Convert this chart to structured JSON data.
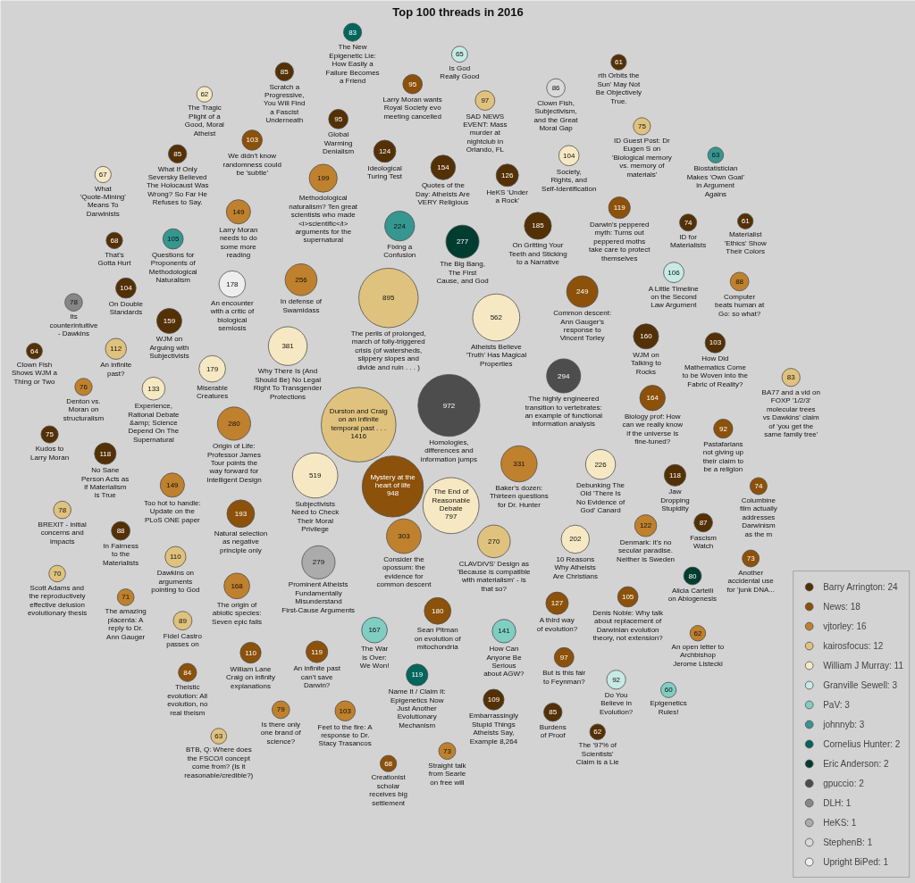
{
  "chart_data": {
    "type": "other",
    "title": "Top 100 threads in 2016",
    "legend": "bottom right",
    "data_labels": true,
    "categories": [
      "Durston and Craig on an infinite temporal past . . .",
      "Homologies, differences and information jumps",
      "Mystery at the heart of life",
      "The perils of prolonged, march of folly-triggered crisis (of watersheds, slippery slopes and divide and ruin . . . )",
      "The End of Reasonable Debate",
      "Atheists Believe 'Truth' Has Magical Properties",
      "Subjectivists Need to Check Their Moral Privilege",
      "Why There Is (And Should Be) No Legal Right To Transgender Protections",
      "Baker's dozen: Thirteen questions for Dr. Hunter",
      "Consider the opossum: the evidence for common descent",
      "The highly engineered transition to vertebrates: an example of functional information analysis",
      "Origin of Life: Professor James Tour points the way forward for Intelligent Design",
      "Prominent Atheists Fundamentally Misunderstand First-Cause Arguments",
      "The Big Bang, The First Cause, and God",
      "CLAVDIVS' Design as 'Because is compatible with materialism' - is that so?",
      "In defense of Swamidass",
      "Common descent: Ann Gauger's response to Vincent Torley",
      "Debunking The Old 'There Is No Evidence of God' Canard",
      "Fixing a Confusion",
      "10 Reasons Why Atheists Are Christians",
      "Methodological naturalism? Ten great scientists who made <i>scientific</i> arguments for the supernatural",
      "Natural selection as negative principle only",
      "On Gritting Your Teeth and Sticking to a Narrative",
      "Sean Pitman on evolution of mitochondria",
      "Miserable Creatures",
      "An encounter with a critic of biological semiosis",
      "The origin of abiotic species: Seven epic fails",
      "The War is Over: We Won!",
      "Biology prof: How can we really know if the universe is fine-tuned?",
      "WJM on Talking to Rocks",
      "WJM on Arguing with Subjectivists",
      "Quotes of the Day: Atheists Are VERY Religious",
      "Too hot to handle: Update on the PLoS ONE paper",
      "Larry Moran needs to do some more reading",
      "How Can Anyone Be Serious about AGW?",
      "Experience, Rational Debate &amp; Science Depend On The Supernatural",
      "A third way of evolution?",
      "HeKS 'Under a Rock'",
      "Ideological Turing Test",
      "Denmark: it's no secular paradise. Neither is Sweden",
      "Darwin's peppered myth: Turns out peppered moths take care to protect themselves",
      "An infinite past can't save Darwin?",
      "Name It / Claim It: Epigenetics Now Just Another Evolutionary Mechanism",
      "Jaw Dropping Stupidity",
      "No Sane Person Acts as if Materialism is True",
      "An infinite past?",
      "William Lane Craig on infinity explanations",
      "Dawkins on arguments pointing to God",
      "Embarrassingly Stupid Things Atheists Say, Example 8,264",
      "A Little Timeline on the Second Law Argument",
      "Denis Noble: Why talk about replacement of Darwinian evolution theory, not extension?",
      "Questions for Proponents of Methodological Naturalism",
      "On Double Standards",
      "Society, Rights, and Self-Identification",
      "We didn't know randomness could be 'subtle'",
      "How Did Mathematics Come to be Woven into the Fabric of Reality?",
      "Feet to the fire: A response to Dr. Stacy Trasancos",
      "But is this fair to Feynman?",
      "SAD NEWS EVENT: Mass murder at nightclub in Orlando, FL",
      "Global Warming Denialism",
      "Larry Moran wants Royal Society evo meeting cancelled",
      "Pastafarians not giving up their claim to be a religion",
      "Do You Believe in Evolution?",
      "Fidel Castro passes on",
      "In Fairness to the Materialists",
      "Computer beats human at Go: so what?",
      "Fascism Watch",
      "Clown Fish, Subjectivism, and the Great Moral Gap",
      "What If Only Seversky Believed The Holocaust Was Wrong? So Far He Refuses to Say.",
      "Burdens of Proof",
      "Scratch a Progressive, You Will Find a Fascist Underneath",
      "Theistic evolution: All evolution, no real theism",
      "BA77 and a vid on FOXP '1/2/3' molecular trees vs Dawkins' claim of 'you get the same family tree'",
      "The New Epigenetic Lie: How Easily a Failure Becomes a Friend",
      "Alicia Cartelli on Abiogenesis",
      "Is there only one brand of science?",
      "BREXIT - initial concerns and impacts",
      "Its counterintuitive - Dawkins",
      "Denton vs. Moran on structuralism",
      "Kudos to Larry Moran",
      "ID Guest Post: Dr Eugen S on 'Biological memory vs. memory of materials'",
      "ID for Materialists",
      "Columbine film actually addresses Darwinism as the m",
      "Another accidental use for 'junk DNA...",
      "Straight talk from Searle on free will",
      "The amazing placenta: A reply to Dr. Ann Gauger",
      "Scott Adams and the reproductively effective delusion evolutionary thesis",
      "Creationist scholar receives big settlement",
      "That's Gotta Hurt",
      "What 'Quote-Mining' Means To Darwinists",
      "Is God Really Good",
      "Clown Fish Shows WJM a Thing or Two",
      "BTB, Q: Where does the FSCO/I concept come from? (Is it reasonable/credible?)",
      "Biostatistician Makes 'Own Goal' in Argument Agains",
      "The '97% of Scientists' Claim is a Lie",
      "An open letter to Archbishop Jerome Listecki",
      "The Tragic Plight of a Good, Moral Atheist",
      "Materialist 'Ethics' Show Their Colors",
      "rth Orbits the Sun' May Not Be Objectively True.",
      "Epigenetics Rules!"
    ],
    "series": [
      {
        "name": "Barry Arrington: 24",
        "color": "#543005",
        "values": [
          null,
          null,
          null,
          null,
          null,
          null,
          null,
          null,
          null,
          null,
          null,
          null,
          null,
          null,
          null,
          null,
          null,
          null,
          null,
          null,
          null,
          null,
          185,
          null,
          null,
          null,
          null,
          null,
          null,
          160,
          159,
          154,
          null,
          null,
          null,
          null,
          null,
          126,
          124,
          null,
          null,
          null,
          null,
          118,
          118,
          null,
          null,
          null,
          109,
          null,
          null,
          null,
          104,
          null,
          null,
          103,
          null,
          null,
          null,
          95,
          null,
          null,
          null,
          null,
          88,
          null,
          87,
          null,
          85,
          85,
          85,
          null,
          null,
          null,
          null,
          null,
          null,
          null,
          null,
          75,
          null,
          74,
          null,
          null,
          null,
          null,
          null,
          null,
          68,
          null,
          null,
          64,
          null,
          null,
          62,
          null,
          null,
          61,
          61,
          null
        ]
      },
      {
        "name": "News: 18",
        "color": "#8c510a",
        "values": [
          null,
          null,
          948,
          null,
          null,
          null,
          null,
          null,
          null,
          null,
          null,
          null,
          null,
          null,
          null,
          null,
          249,
          null,
          null,
          null,
          null,
          193,
          null,
          180,
          null,
          null,
          null,
          null,
          164,
          null,
          null,
          null,
          null,
          null,
          null,
          null,
          127,
          null,
          null,
          null,
          119,
          119,
          null,
          null,
          null,
          null,
          110,
          null,
          null,
          null,
          105,
          null,
          null,
          null,
          103,
          null,
          null,
          97,
          null,
          null,
          95,
          92,
          null,
          null,
          null,
          null,
          null,
          null,
          null,
          null,
          null,
          84,
          null,
          null,
          null,
          null,
          null,
          null,
          null,
          null,
          null,
          null,
          74,
          73,
          null,
          null,
          null,
          68,
          null,
          null,
          null,
          null,
          null,
          null,
          null,
          null,
          null,
          null,
          null,
          null
        ]
      },
      {
        "name": "vjtorley: 16",
        "color": "#bf812d",
        "values": [
          null,
          null,
          null,
          null,
          null,
          null,
          null,
          null,
          331,
          303,
          null,
          280,
          null,
          null,
          null,
          256,
          null,
          null,
          null,
          null,
          199,
          null,
          null,
          null,
          null,
          null,
          168,
          null,
          null,
          null,
          null,
          null,
          149,
          149,
          null,
          null,
          null,
          null,
          null,
          122,
          null,
          null,
          null,
          null,
          null,
          null,
          null,
          null,
          null,
          null,
          null,
          null,
          null,
          null,
          null,
          null,
          103,
          null,
          null,
          null,
          null,
          null,
          null,
          null,
          null,
          88,
          null,
          null,
          null,
          null,
          null,
          null,
          null,
          null,
          null,
          79,
          null,
          null,
          76,
          null,
          null,
          null,
          null,
          null,
          73,
          71,
          null,
          null,
          null,
          null,
          null,
          null,
          null,
          null,
          null,
          62,
          null,
          null,
          null,
          null
        ]
      },
      {
        "name": "kairosfocus: 12",
        "color": "#dfc27d",
        "values": [
          1416,
          null,
          null,
          895,
          null,
          null,
          null,
          null,
          null,
          null,
          null,
          null,
          null,
          null,
          270,
          null,
          null,
          null,
          null,
          null,
          null,
          null,
          null,
          null,
          null,
          null,
          null,
          null,
          null,
          null,
          null,
          null,
          null,
          null,
          null,
          null,
          null,
          null,
          null,
          null,
          null,
          null,
          null,
          null,
          null,
          112,
          null,
          110,
          null,
          null,
          null,
          null,
          null,
          null,
          null,
          null,
          null,
          null,
          97,
          null,
          null,
          null,
          null,
          89,
          null,
          null,
          null,
          null,
          null,
          null,
          null,
          null,
          83,
          null,
          null,
          null,
          78,
          null,
          null,
          null,
          75,
          null,
          null,
          null,
          null,
          null,
          70,
          null,
          null,
          null,
          null,
          null,
          63,
          null,
          null,
          null,
          null,
          null,
          null,
          null
        ]
      },
      {
        "name": "William J Murray: 11",
        "color": "#f6e8c3",
        "values": [
          null,
          null,
          null,
          null,
          797,
          562,
          519,
          381,
          null,
          null,
          null,
          null,
          null,
          null,
          null,
          null,
          null,
          226,
          null,
          202,
          null,
          null,
          null,
          null,
          179,
          null,
          null,
          null,
          null,
          null,
          null,
          null,
          null,
          null,
          null,
          133,
          null,
          null,
          null,
          null,
          null,
          null,
          null,
          null,
          null,
          null,
          null,
          null,
          null,
          null,
          null,
          null,
          null,
          104,
          null,
          null,
          null,
          null,
          null,
          null,
          null,
          null,
          null,
          null,
          null,
          null,
          null,
          null,
          null,
          null,
          null,
          null,
          null,
          null,
          null,
          null,
          null,
          null,
          null,
          null,
          null,
          null,
          null,
          null,
          null,
          null,
          null,
          null,
          null,
          67,
          null,
          null,
          null,
          null,
          null,
          null,
          62,
          null,
          null,
          null
        ]
      },
      {
        "name": "Granville Sewell: 3",
        "color": "#c7eae5",
        "values": [
          null,
          null,
          null,
          null,
          null,
          null,
          null,
          null,
          null,
          null,
          null,
          null,
          null,
          null,
          null,
          null,
          null,
          null,
          null,
          null,
          null,
          null,
          null,
          null,
          null,
          null,
          null,
          null,
          null,
          null,
          null,
          null,
          null,
          null,
          null,
          null,
          null,
          null,
          null,
          null,
          null,
          null,
          null,
          null,
          null,
          null,
          null,
          null,
          null,
          106,
          null,
          null,
          null,
          null,
          null,
          null,
          null,
          null,
          null,
          null,
          null,
          null,
          92,
          null,
          null,
          null,
          null,
          null,
          null,
          null,
          null,
          null,
          null,
          null,
          null,
          null,
          null,
          null,
          null,
          null,
          null,
          null,
          null,
          null,
          null,
          null,
          null,
          null,
          null,
          null,
          65,
          null,
          null,
          null,
          null,
          null,
          null,
          null,
          null,
          null
        ]
      },
      {
        "name": "PaV: 3",
        "color": "#80cdc1",
        "values": [
          null,
          null,
          null,
          null,
          null,
          null,
          null,
          null,
          null,
          null,
          null,
          null,
          null,
          null,
          null,
          null,
          null,
          null,
          null,
          null,
          null,
          null,
          null,
          null,
          null,
          null,
          null,
          167,
          null,
          null,
          null,
          null,
          null,
          null,
          141,
          null,
          null,
          null,
          null,
          null,
          null,
          null,
          null,
          null,
          null,
          null,
          null,
          null,
          null,
          null,
          null,
          null,
          null,
          null,
          null,
          null,
          null,
          null,
          null,
          null,
          null,
          null,
          null,
          null,
          null,
          null,
          null,
          null,
          null,
          null,
          null,
          null,
          null,
          null,
          null,
          null,
          null,
          null,
          null,
          null,
          null,
          null,
          null,
          null,
          null,
          null,
          null,
          null,
          null,
          null,
          null,
          null,
          null,
          null,
          null,
          null,
          null,
          null,
          null,
          60
        ]
      },
      {
        "name": "johnnyb: 3",
        "color": "#35978f",
        "values": [
          null,
          null,
          null,
          null,
          null,
          null,
          null,
          null,
          null,
          null,
          null,
          null,
          null,
          null,
          null,
          null,
          null,
          null,
          224,
          null,
          null,
          null,
          null,
          null,
          null,
          null,
          null,
          null,
          null,
          null,
          null,
          null,
          null,
          null,
          null,
          null,
          null,
          null,
          null,
          null,
          null,
          null,
          null,
          null,
          null,
          null,
          null,
          null,
          null,
          null,
          null,
          105,
          null,
          null,
          null,
          null,
          null,
          null,
          null,
          null,
          null,
          null,
          null,
          null,
          null,
          null,
          null,
          null,
          null,
          null,
          null,
          null,
          null,
          null,
          null,
          null,
          null,
          null,
          null,
          null,
          null,
          null,
          null,
          null,
          null,
          null,
          null,
          null,
          null,
          null,
          null,
          null,
          null,
          63,
          null,
          null,
          null,
          null,
          null,
          null
        ]
      },
      {
        "name": "Cornelius Hunter: 2",
        "color": "#01665e",
        "values": [
          null,
          null,
          null,
          null,
          null,
          null,
          null,
          null,
          null,
          null,
          null,
          null,
          null,
          null,
          null,
          null,
          null,
          null,
          null,
          null,
          null,
          null,
          null,
          null,
          null,
          null,
          null,
          null,
          null,
          null,
          null,
          null,
          null,
          null,
          null,
          null,
          null,
          null,
          null,
          null,
          null,
          null,
          119,
          null,
          null,
          null,
          null,
          null,
          null,
          null,
          null,
          null,
          null,
          null,
          null,
          null,
          null,
          null,
          null,
          null,
          null,
          null,
          null,
          null,
          null,
          null,
          null,
          null,
          null,
          null,
          null,
          null,
          null,
          83,
          null,
          null,
          null,
          null,
          null,
          null,
          null,
          null,
          null,
          null,
          null,
          null,
          null,
          null,
          null,
          null,
          null,
          null,
          null,
          null,
          null,
          null,
          null,
          null,
          null,
          null
        ]
      },
      {
        "name": "Eric Anderson: 2",
        "color": "#003c30",
        "values": [
          null,
          null,
          null,
          null,
          null,
          null,
          null,
          null,
          null,
          null,
          null,
          null,
          null,
          277,
          null,
          null,
          null,
          null,
          null,
          null,
          null,
          null,
          null,
          null,
          null,
          null,
          null,
          null,
          null,
          null,
          null,
          null,
          null,
          null,
          null,
          null,
          null,
          null,
          null,
          null,
          null,
          null,
          null,
          null,
          null,
          null,
          null,
          null,
          null,
          null,
          null,
          null,
          null,
          null,
          null,
          null,
          null,
          null,
          null,
          null,
          null,
          null,
          null,
          null,
          null,
          null,
          null,
          null,
          null,
          null,
          null,
          null,
          null,
          null,
          80,
          null,
          null,
          null,
          null,
          null,
          null,
          null,
          null,
          null,
          null,
          null,
          null,
          null,
          null,
          null,
          null,
          null,
          null,
          null,
          null,
          null,
          null,
          null,
          null,
          null
        ]
      },
      {
        "name": "gpuccio: 2",
        "color": "#4d4d4d",
        "values": [
          null,
          972,
          null,
          null,
          null,
          null,
          null,
          null,
          null,
          null,
          294,
          null,
          null,
          null,
          null,
          null,
          null,
          null,
          null,
          null,
          null,
          null,
          null,
          null,
          null,
          null,
          null,
          null,
          null,
          null,
          null,
          null,
          null,
          null,
          null,
          null,
          null,
          null,
          null,
          null,
          null,
          null,
          null,
          null,
          null,
          null,
          null,
          null,
          null,
          null,
          null,
          null,
          null,
          null,
          null,
          null,
          null,
          null,
          null,
          null,
          null,
          null,
          null,
          null,
          null,
          null,
          null,
          null,
          null,
          null,
          null,
          null,
          null,
          null,
          null,
          null,
          null,
          null,
          null,
          null,
          null,
          null,
          null,
          null,
          null,
          null,
          null,
          null,
          null,
          null,
          null,
          null,
          null,
          null,
          null,
          null,
          null,
          null,
          null,
          null
        ]
      },
      {
        "name": "DLH: 1",
        "color": "#878787",
        "values": [
          null,
          null,
          null,
          null,
          null,
          null,
          null,
          null,
          null,
          null,
          null,
          null,
          null,
          null,
          null,
          null,
          null,
          null,
          null,
          null,
          null,
          null,
          null,
          null,
          null,
          null,
          null,
          null,
          null,
          null,
          null,
          null,
          null,
          null,
          null,
          null,
          null,
          null,
          null,
          null,
          null,
          null,
          null,
          null,
          null,
          null,
          null,
          null,
          null,
          null,
          null,
          null,
          null,
          null,
          null,
          null,
          null,
          null,
          null,
          null,
          null,
          null,
          null,
          null,
          null,
          null,
          null,
          null,
          null,
          null,
          null,
          null,
          null,
          null,
          null,
          null,
          null,
          78,
          null,
          null,
          null,
          null,
          null,
          null,
          null,
          null,
          null,
          null,
          null,
          null,
          null,
          null,
          null,
          null,
          null,
          null,
          null,
          null,
          null,
          null
        ]
      },
      {
        "name": "HeKS: 1",
        "color": "#ababab",
        "values": [
          null,
          null,
          null,
          null,
          null,
          null,
          null,
          null,
          null,
          null,
          null,
          null,
          279,
          null,
          null,
          null,
          null,
          null,
          null,
          null,
          null,
          null,
          null,
          null,
          null,
          null,
          null,
          null,
          null,
          null,
          null,
          null,
          null,
          null,
          null,
          null,
          null,
          null,
          null,
          null,
          null,
          null,
          null,
          null,
          null,
          null,
          null,
          null,
          null,
          null,
          null,
          null,
          null,
          null,
          null,
          null,
          null,
          null,
          null,
          null,
          null,
          null,
          null,
          null,
          null,
          null,
          null,
          null,
          null,
          null,
          null,
          null,
          null,
          null,
          null,
          null,
          null,
          null,
          null,
          null,
          null,
          null,
          null,
          null,
          null,
          null,
          null,
          null,
          null,
          null,
          null,
          null,
          null,
          null,
          null,
          null,
          null,
          null,
          null,
          null
        ]
      },
      {
        "name": "StephenB: 1",
        "color": "#d9d9d9",
        "values": [
          null,
          null,
          null,
          null,
          null,
          null,
          null,
          null,
          null,
          null,
          null,
          null,
          null,
          null,
          null,
          null,
          null,
          null,
          null,
          null,
          null,
          null,
          null,
          null,
          null,
          null,
          null,
          null,
          null,
          null,
          null,
          null,
          null,
          null,
          null,
          null,
          null,
          null,
          null,
          null,
          null,
          null,
          null,
          null,
          null,
          null,
          null,
          null,
          null,
          null,
          null,
          null,
          null,
          null,
          null,
          null,
          null,
          null,
          null,
          null,
          null,
          null,
          null,
          null,
          null,
          null,
          null,
          86,
          null,
          null,
          null,
          null,
          null,
          null,
          null,
          null,
          null,
          null,
          null,
          null,
          null,
          null,
          null,
          null,
          null,
          null,
          null,
          null,
          null,
          null,
          null,
          null,
          null,
          null,
          null,
          null,
          null,
          null,
          null,
          null
        ]
      },
      {
        "name": "Upright BiPed: 1",
        "color": "#eeeeee",
        "values": [
          null,
          null,
          null,
          null,
          null,
          null,
          null,
          null,
          null,
          null,
          null,
          null,
          null,
          null,
          null,
          null,
          null,
          null,
          null,
          null,
          null,
          null,
          null,
          null,
          null,
          178,
          null,
          null,
          null,
          null,
          null,
          null,
          null,
          null,
          null,
          null,
          null,
          null,
          null,
          null,
          null,
          null,
          null,
          null,
          null,
          null,
          null,
          null,
          null,
          null,
          null,
          null,
          null,
          null,
          null,
          null,
          null,
          null,
          null,
          null,
          null,
          null,
          null,
          null,
          null,
          null,
          null,
          null,
          null,
          null,
          null,
          null,
          null,
          null,
          null,
          null,
          null,
          null,
          null,
          null,
          null,
          null,
          null,
          null,
          null,
          null,
          null,
          null,
          null,
          null,
          null,
          null,
          null,
          null,
          null,
          null,
          null,
          null,
          null,
          null
        ]
      }
    ]
  }
}
